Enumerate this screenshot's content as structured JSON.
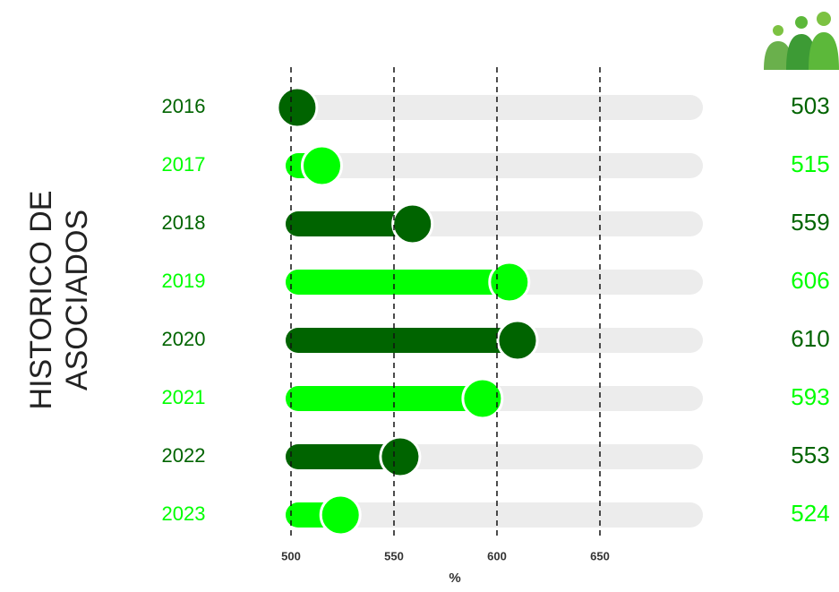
{
  "chart_data": {
    "type": "lollipop-bar",
    "title": [
      "HISTORICO DE",
      "ASOCIADOS"
    ],
    "categories": [
      "2016",
      "2017",
      "2018",
      "2019",
      "2020",
      "2021",
      "2022",
      "2023"
    ],
    "values": [
      503,
      515,
      559,
      606,
      610,
      593,
      553,
      524
    ],
    "colors": [
      "#006400",
      "#00ff00",
      "#006400",
      "#00ff00",
      "#006400",
      "#00ff00",
      "#006400",
      "#00ff00"
    ],
    "xlim": [
      500,
      700
    ],
    "xticks": [
      500,
      550,
      600,
      650
    ],
    "xlabel": "%",
    "grid": true
  }
}
